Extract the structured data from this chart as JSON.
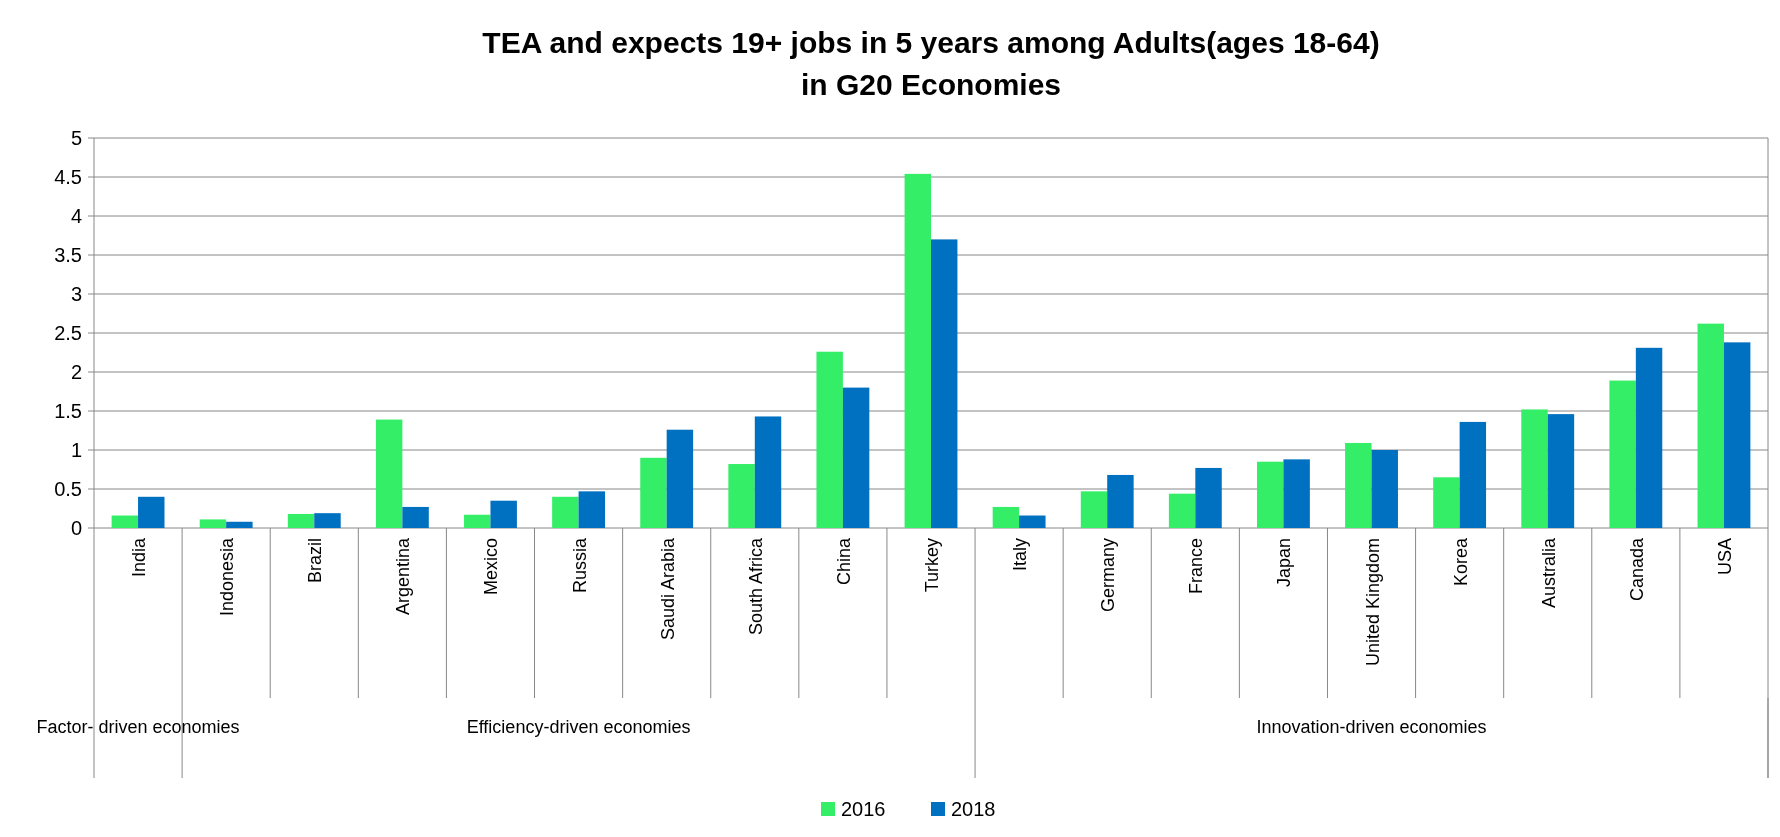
{
  "chart_data": {
    "type": "bar",
    "title": "TEA and expects 19+ jobs in 5 years among Adults(ages 18-64)\nin G20 Economies",
    "categories": [
      "India",
      "Indonesia",
      "Brazil",
      "Argentina",
      "Mexico",
      "Russia",
      "Saudi Arabia",
      "South Africa",
      "China",
      "Turkey",
      "Italy",
      "Germany",
      "France",
      "Japan",
      "United Kingdom",
      "Korea",
      "Australia",
      "Canada",
      "USA"
    ],
    "series": [
      {
        "name": "2016",
        "color": "#33ee66",
        "values": [
          0.16,
          0.11,
          0.18,
          1.39,
          0.17,
          0.4,
          0.9,
          0.82,
          2.26,
          4.54,
          0.27,
          0.47,
          0.44,
          0.85,
          1.09,
          0.65,
          1.52,
          1.89,
          2.62
        ]
      },
      {
        "name": "2018",
        "color": "#0070c0",
        "values": [
          0.4,
          0.08,
          0.19,
          0.27,
          0.35,
          0.47,
          1.26,
          1.43,
          1.8,
          3.7,
          0.16,
          0.68,
          0.77,
          0.88,
          1.0,
          1.36,
          1.46,
          2.31,
          2.38
        ]
      }
    ],
    "ylim": [
      0,
      5
    ],
    "yticks": [
      0,
      0.5,
      1,
      1.5,
      2,
      2.5,
      3,
      3.5,
      4,
      4.5,
      5
    ],
    "grid": "y",
    "legend": "bottom",
    "annotations": [
      "Factor- driven economies",
      "Efficiency-driven economies",
      "Innovation-driven economies"
    ]
  }
}
